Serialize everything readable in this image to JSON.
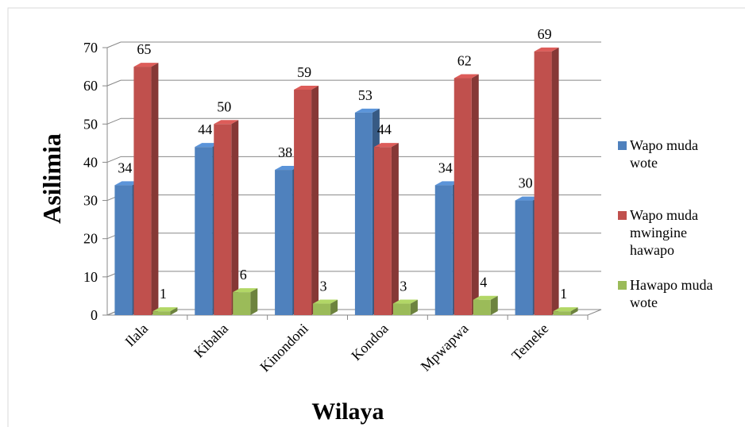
{
  "chart_data": {
    "type": "bar3d",
    "y_label": "Asilimia",
    "x_label": "Wilaya",
    "categories": [
      "Ilala",
      "Kibaha",
      "Kinondoni",
      "Kondoa",
      "Mpwapwa",
      "Temeke"
    ],
    "series": [
      {
        "name": "Wapo muda wote",
        "color": "#4f81bd",
        "values": [
          34,
          44,
          38,
          53,
          34,
          30
        ]
      },
      {
        "name": "Wapo muda mwingine hawapo",
        "color": "#c0504d",
        "values": [
          65,
          50,
          59,
          44,
          62,
          69
        ]
      },
      {
        "name": "Hawapo muda wote",
        "color": "#9bbb59",
        "values": [
          1,
          6,
          3,
          3,
          4,
          1
        ]
      }
    ],
    "ylim": [
      0,
      70
    ],
    "yticks": [
      0,
      10,
      20,
      30,
      40,
      50,
      60,
      70
    ],
    "grid": true,
    "legend": "right"
  }
}
